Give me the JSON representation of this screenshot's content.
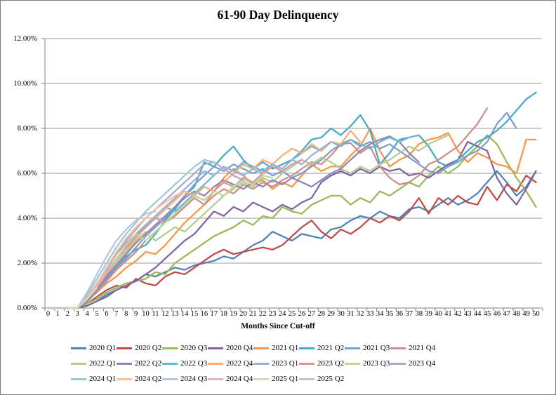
{
  "title": "61-90 Day Delinquency",
  "chart_data": {
    "type": "line",
    "xlabel": "Months Since Cut-off",
    "ylabel": "",
    "ylim": [
      0,
      12
    ],
    "y_ticks": [
      "12.00%",
      "10.00%",
      "8.00%",
      "6.00%",
      "4.00%",
      "2.00%",
      "0.00%"
    ],
    "x_ticks": [
      0,
      1,
      2,
      3,
      4,
      5,
      6,
      7,
      8,
      9,
      10,
      11,
      12,
      13,
      14,
      15,
      16,
      17,
      18,
      19,
      20,
      21,
      22,
      23,
      24,
      25,
      26,
      27,
      28,
      29,
      30,
      31,
      32,
      33,
      34,
      35,
      36,
      37,
      38,
      39,
      40,
      41,
      42,
      43,
      44,
      45,
      46,
      47,
      48,
      49,
      50
    ],
    "grid": true,
    "grid_color": "#9a9a9a",
    "axis_color": "#808080",
    "legend_position": "bottom",
    "units": "percent",
    "x_is_months_since_cutoff": true,
    "series": [
      {
        "name": "2020 Q1",
        "color": "#4F81BD",
        "values": [
          0,
          0,
          0,
          0,
          0.1,
          0.3,
          0.6,
          0.8,
          1.0,
          1.2,
          1.5,
          1.4,
          1.6,
          1.8,
          1.7,
          1.9,
          2.0,
          2.1,
          2.3,
          2.2,
          2.5,
          2.8,
          3.0,
          3.4,
          3.2,
          3.0,
          3.3,
          3.2,
          3.1,
          3.5,
          3.6,
          3.9,
          4.1,
          4.0,
          4.3,
          4.1,
          4.0,
          4.4,
          4.5,
          4.3,
          4.6,
          4.9,
          4.6,
          4.8,
          5.1,
          5.6,
          6.1,
          5.6,
          5.0,
          5.4,
          6.1
        ]
      },
      {
        "name": "2020 Q2",
        "color": "#BE4B48",
        "values": [
          0,
          0,
          0,
          0,
          0.2,
          0.5,
          0.8,
          1.0,
          0.9,
          1.3,
          1.1,
          1.0,
          1.4,
          1.6,
          1.5,
          1.8,
          2.1,
          2.4,
          2.6,
          2.4,
          2.5,
          2.6,
          2.7,
          2.6,
          2.8,
          3.2,
          3.6,
          3.9,
          3.4,
          3.1,
          3.5,
          3.3,
          3.6,
          4.0,
          3.8,
          4.1,
          3.9,
          4.3,
          4.9,
          4.2,
          4.9,
          4.6,
          5.0,
          4.7,
          4.6,
          5.4,
          4.8,
          5.5,
          5.2,
          5.9,
          5.6
        ]
      },
      {
        "name": "2020 Q3",
        "color": "#98B954",
        "values": [
          0,
          0,
          0,
          0,
          0.2,
          0.4,
          0.7,
          0.9,
          1.1,
          1.2,
          1.3,
          1.6,
          1.5,
          2.0,
          2.3,
          2.6,
          2.9,
          3.2,
          3.4,
          3.6,
          3.9,
          3.7,
          4.1,
          4.0,
          4.5,
          4.3,
          4.2,
          4.6,
          4.8,
          5.0,
          5.0,
          4.6,
          4.9,
          4.7,
          5.2,
          5.0,
          5.3,
          5.6,
          5.4,
          5.9,
          6.3,
          6.0,
          6.3,
          6.8,
          7.2,
          7.7,
          7.3,
          6.5,
          5.8,
          5.2,
          4.5
        ]
      },
      {
        "name": "2020 Q4",
        "color": "#7F63A1",
        "values": [
          0,
          0,
          0,
          0,
          0.1,
          0.3,
          0.5,
          0.8,
          1.0,
          1.2,
          1.5,
          1.8,
          2.2,
          2.6,
          3.0,
          3.3,
          3.8,
          4.3,
          4.1,
          4.5,
          4.3,
          4.7,
          4.5,
          4.3,
          4.6,
          4.4,
          4.7,
          4.9,
          5.6,
          5.9,
          6.1,
          5.9,
          6.2,
          6.0,
          6.3,
          6.1,
          6.2,
          5.9,
          6.0,
          5.8,
          6.1,
          6.4,
          6.6,
          7.4,
          7.2,
          7.0,
          5.8,
          5.1,
          4.6,
          5.3,
          6.1
        ]
      },
      {
        "name": "2021 Q1",
        "color": "#F79646",
        "values": [
          0,
          0,
          0,
          0,
          0.3,
          0.7,
          1.1,
          1.4,
          1.8,
          2.1,
          2.5,
          2.4,
          2.8,
          3.3,
          3.8,
          4.2,
          4.6,
          5.2,
          5.8,
          6.2,
          5.9,
          5.5,
          5.7,
          5.3,
          5.6,
          5.4,
          5.9,
          6.4,
          6.1,
          6.3,
          6.3,
          6.8,
          7.2,
          8.0,
          7.0,
          6.3,
          6.6,
          6.8,
          7.3,
          7.5,
          7.6,
          7.8,
          7.0,
          6.5,
          6.9,
          6.7,
          6.4,
          6.3,
          6.0,
          7.5,
          7.5
        ]
      },
      {
        "name": "2021 Q2",
        "color": "#46AAC5",
        "values": [
          0,
          0,
          0,
          0,
          0.4,
          0.9,
          1.4,
          1.9,
          2.3,
          2.6,
          2.8,
          3.3,
          3.9,
          4.4,
          5.0,
          5.4,
          6.5,
          6.3,
          6.8,
          7.2,
          6.6,
          6.2,
          6.5,
          6.2,
          6.4,
          6.6,
          7.0,
          7.5,
          7.6,
          8.0,
          7.7,
          8.1,
          8.6,
          7.9,
          6.4,
          6.9,
          7.5,
          7.6,
          7.7,
          7.2,
          6.5,
          6.3,
          6.6,
          7.0,
          7.4,
          7.6,
          7.9,
          8.3,
          8.8,
          9.3,
          9.6
        ]
      },
      {
        "name": "2021 Q3",
        "color": "#7E9BC9",
        "values": [
          0,
          0,
          0,
          0,
          0.4,
          0.8,
          1.3,
          1.8,
          2.2,
          2.7,
          3.2,
          3.6,
          4.0,
          4.5,
          5.0,
          5.5,
          5.9,
          6.3,
          6.1,
          6.4,
          6.2,
          6.0,
          6.2,
          5.9,
          6.1,
          5.8,
          6.0,
          6.3,
          6.6,
          7.0,
          7.3,
          7.5,
          7.2,
          7.4,
          7.1,
          7.3,
          7.0,
          6.7,
          6.4,
          6.1,
          6.0,
          6.3,
          6.5,
          6.8,
          7.0,
          7.4,
          8.2,
          8.7,
          8.0
        ]
      },
      {
        "name": "2021 Q4",
        "color": "#CC8E8B",
        "values": [
          0,
          0,
          0,
          0,
          0.3,
          0.7,
          1.2,
          1.7,
          2.1,
          2.5,
          3.0,
          3.4,
          3.8,
          4.1,
          4.5,
          4.9,
          4.6,
          5.0,
          5.3,
          5.1,
          5.5,
          5.3,
          5.6,
          5.4,
          5.7,
          5.9,
          6.2,
          6.5,
          6.4,
          6.8,
          7.3,
          7.35,
          6.9,
          7.2,
          6.3,
          5.8,
          5.5,
          5.6,
          5.9,
          6.4,
          6.6,
          6.9,
          7.2,
          7.7,
          8.2,
          8.9
        ]
      },
      {
        "name": "2022 Q1",
        "color": "#B3CC8E",
        "values": [
          0,
          0,
          0,
          0,
          0.4,
          0.9,
          1.5,
          2.0,
          2.5,
          3.0,
          3.4,
          3.0,
          3.3,
          3.6,
          3.4,
          3.8,
          4.2,
          4.6,
          5.0,
          5.3,
          5.6,
          5.4,
          5.8,
          5.6,
          6.0,
          6.3,
          6.6,
          6.4,
          6.7,
          6.5,
          6.2,
          6.0,
          6.3,
          6.1,
          6.4,
          6.6,
          6.9,
          7.2,
          7.0,
          7.3,
          7.5,
          7.7
        ]
      },
      {
        "name": "2022 Q2",
        "color": "#9184B5",
        "values": [
          0,
          0,
          0,
          0,
          0.3,
          0.8,
          1.4,
          1.9,
          2.4,
          2.9,
          3.3,
          3.7,
          4.1,
          4.5,
          4.9,
          5.2,
          5.0,
          5.4,
          5.7,
          5.5,
          5.3,
          5.6,
          5.4,
          5.7,
          5.5,
          5.8,
          5.6,
          5.4,
          5.7,
          6.0,
          6.2,
          6.6,
          7.0,
          7.3,
          7.5,
          7.65,
          7.4,
          6.9,
          6.5
        ]
      },
      {
        "name": "2022 Q3",
        "color": "#6EB7CE",
        "values": [
          0,
          0,
          0,
          0,
          0.5,
          1.0,
          1.6,
          2.2,
          2.7,
          3.2,
          3.7,
          4.1,
          4.5,
          4.3,
          4.7,
          5.1,
          5.5,
          5.9,
          6.3,
          6.1,
          6.5,
          6.3,
          6.1,
          6.4,
          6.2,
          6.6,
          6.9,
          7.2,
          7.0,
          7.4,
          7.2,
          7.5,
          7.3,
          7.1,
          7.4,
          7.6,
          7.4,
          7.6,
          7.7
        ]
      },
      {
        "name": "2022 Q4",
        "color": "#F9AC74",
        "values": [
          0,
          0,
          0,
          0,
          0.4,
          0.9,
          1.5,
          2.1,
          2.6,
          3.1,
          3.6,
          4.0,
          4.4,
          4.8,
          5.2,
          5.0,
          5.4,
          5.2,
          5.6,
          6.0,
          6.4,
          6.2,
          6.6,
          6.4,
          6.8,
          7.1,
          6.9,
          7.3,
          7.0,
          7.4,
          7.3,
          7.9,
          7.4
        ]
      },
      {
        "name": "2023 Q1",
        "color": "#95B3D7",
        "values": [
          0,
          0,
          0,
          0,
          0.5,
          1.1,
          1.7,
          2.4,
          2.9,
          3.3,
          3.7,
          4.1,
          4.5,
          4.9,
          5.3,
          5.7,
          6.1,
          5.9,
          6.3,
          6.1,
          5.9,
          6.2,
          6.0,
          6.4,
          6.2,
          6.6,
          6.4,
          6.8,
          7.1,
          7.4
        ]
      },
      {
        "name": "2023 Q2",
        "color": "#D49A98",
        "values": [
          0,
          0,
          0,
          0,
          0.4,
          0.9,
          1.5,
          2.1,
          2.7,
          3.2,
          3.6,
          4.0,
          3.8,
          4.2,
          4.6,
          5.0,
          4.8,
          5.2,
          5.6,
          5.4,
          5.8,
          5.6,
          6.0,
          6.3,
          6.1,
          6.4,
          6.6
        ]
      },
      {
        "name": "2023 Q3",
        "color": "#C2D69B",
        "values": [
          0,
          0,
          0,
          0,
          0.5,
          1.0,
          1.6,
          2.2,
          2.8,
          3.3,
          3.0,
          3.4,
          3.8,
          4.2,
          4.6,
          5.0,
          4.8,
          5.2,
          5.0,
          5.4,
          5.7,
          5.5,
          5.9,
          5.8
        ]
      },
      {
        "name": "2023 Q4",
        "color": "#B2A5C7",
        "values": [
          0,
          0,
          0,
          0,
          0.5,
          1.1,
          1.8,
          2.4,
          3.0,
          3.5,
          4.0,
          4.4,
          4.8,
          5.2,
          5.6,
          6.0,
          6.4,
          6.5,
          6.2,
          5.9,
          5.7
        ]
      },
      {
        "name": "2024 Q1",
        "color": "#9CC7D8",
        "values": [
          0,
          0,
          0,
          0,
          0.6,
          1.3,
          2.0,
          2.7,
          3.3,
          3.8,
          4.3,
          4.7,
          5.1,
          5.5,
          5.9,
          6.3,
          6.6,
          6.5
        ]
      },
      {
        "name": "2024 Q2",
        "color": "#FAC09A",
        "values": [
          0,
          0,
          0,
          0,
          0.5,
          1.1,
          1.8,
          2.5,
          3.1,
          3.6,
          4.0,
          4.4,
          4.7,
          5.0,
          5.2
        ]
      },
      {
        "name": "2024 Q3",
        "color": "#B5C4DF",
        "values": [
          0,
          0,
          0,
          0,
          0.7,
          1.5,
          2.3,
          3.0,
          3.5,
          3.9,
          4.2,
          4.3
        ]
      },
      {
        "name": "2024 Q4",
        "color": "#DFB8B6",
        "values": [
          0,
          0,
          0,
          0,
          0.5,
          1.0,
          1.6,
          2.1,
          2.6
        ]
      },
      {
        "name": "2025 Q1",
        "color": "#CFE0AF",
        "values": [
          0,
          0,
          0,
          0,
          0.4,
          0.9
        ]
      },
      {
        "name": "2025 Q2",
        "color": "#C5BFD8",
        "values": [
          0,
          0,
          0
        ]
      }
    ]
  }
}
